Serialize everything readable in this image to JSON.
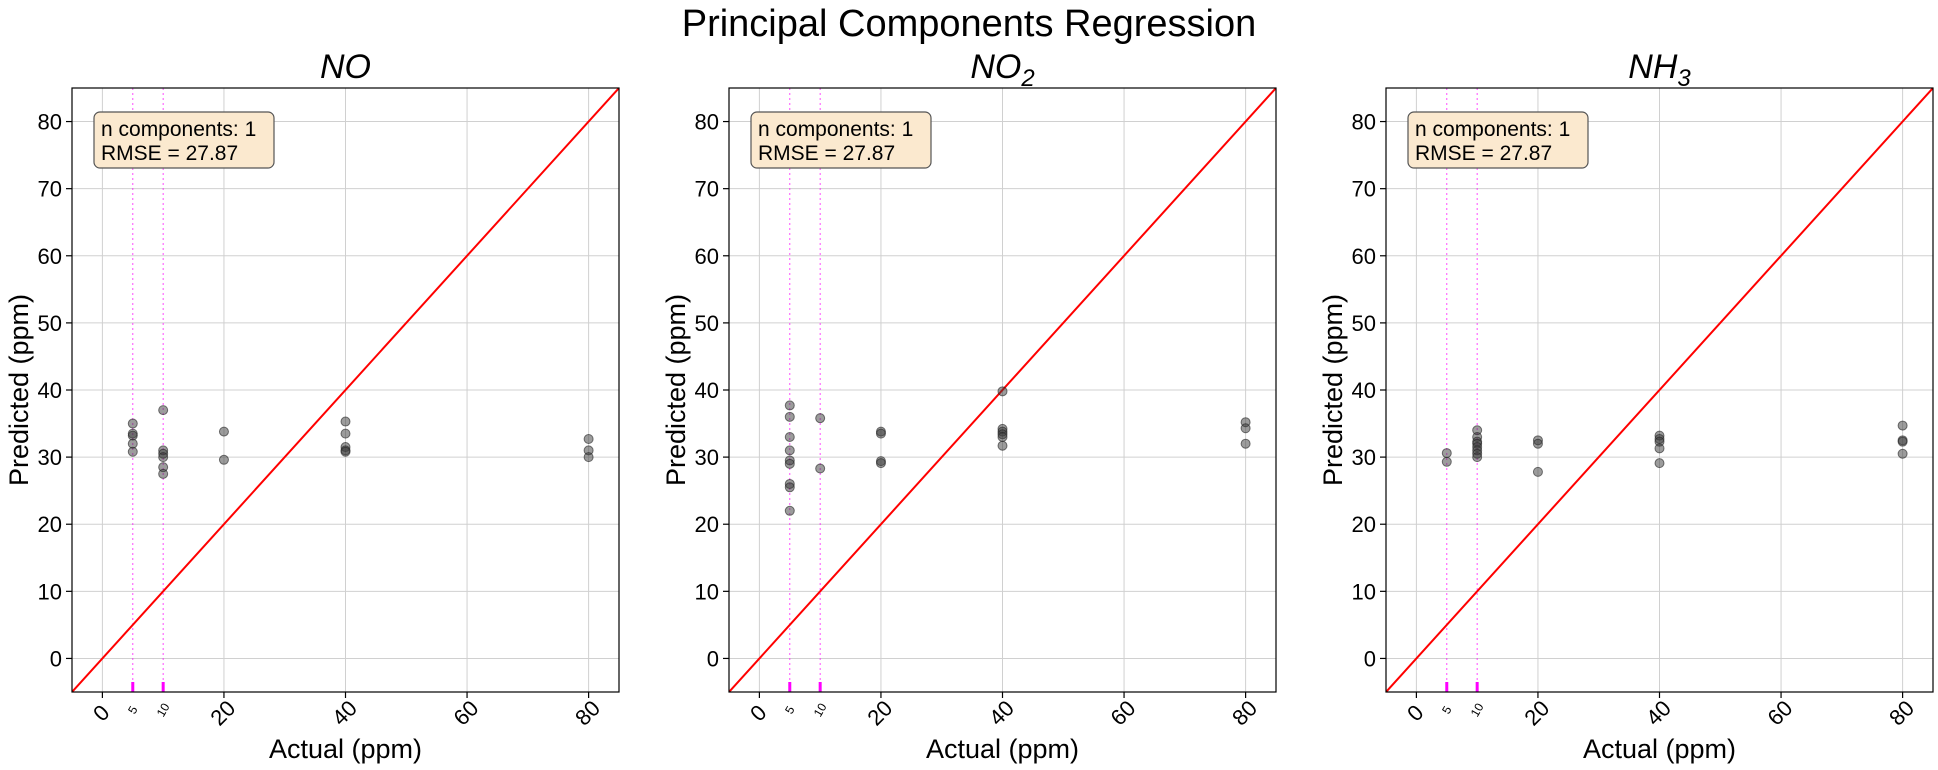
{
  "figure": {
    "title": "Principal Components Regression"
  },
  "colors": {
    "identity_line": "#ff0000",
    "points": "#3a3a3a",
    "marker_lines": "#ff00ff",
    "annotation_bg": "#fbe9cf",
    "grid": "#d0d0d0"
  },
  "chart_data": [
    {
      "type": "scatter",
      "title": "NO",
      "title_sub": "",
      "xlabel": "Actual (ppm)",
      "ylabel": "Predicted (ppm)",
      "xlim": [
        -5,
        85
      ],
      "ylim": [
        -5,
        85
      ],
      "xticks": [
        0,
        20,
        40,
        60,
        80
      ],
      "yticks": [
        0,
        10,
        20,
        30,
        40,
        50,
        60,
        70,
        80
      ],
      "minor_xticks": [
        5,
        10
      ],
      "grid": true,
      "identity_line": true,
      "annotation": {
        "line1": "n components: 1",
        "line2": "RMSE = 27.87",
        "placement": "top-left"
      },
      "points": [
        {
          "x": 5,
          "y": 35.0
        },
        {
          "x": 5,
          "y": 33.5
        },
        {
          "x": 5,
          "y": 33.2
        },
        {
          "x": 5,
          "y": 32.0
        },
        {
          "x": 5,
          "y": 30.8
        },
        {
          "x": 10,
          "y": 37.0
        },
        {
          "x": 10,
          "y": 31.0
        },
        {
          "x": 10,
          "y": 30.5
        },
        {
          "x": 10,
          "y": 30.0
        },
        {
          "x": 10,
          "y": 28.5
        },
        {
          "x": 10,
          "y": 27.5
        },
        {
          "x": 20,
          "y": 33.8
        },
        {
          "x": 20,
          "y": 29.6
        },
        {
          "x": 40,
          "y": 35.3
        },
        {
          "x": 40,
          "y": 33.5
        },
        {
          "x": 40,
          "y": 31.5
        },
        {
          "x": 40,
          "y": 31.0
        },
        {
          "x": 40,
          "y": 30.8
        },
        {
          "x": 80,
          "y": 32.7
        },
        {
          "x": 80,
          "y": 31.0
        },
        {
          "x": 80,
          "y": 30.0
        }
      ]
    },
    {
      "type": "scatter",
      "title": "NO",
      "title_sub": "2",
      "xlabel": "Actual (ppm)",
      "ylabel": "Predicted (ppm)",
      "xlim": [
        -5,
        85
      ],
      "ylim": [
        -5,
        85
      ],
      "xticks": [
        0,
        20,
        40,
        60,
        80
      ],
      "yticks": [
        0,
        10,
        20,
        30,
        40,
        50,
        60,
        70,
        80
      ],
      "minor_xticks": [
        5,
        10
      ],
      "grid": true,
      "identity_line": true,
      "annotation": {
        "line1": "n components: 1",
        "line2": "RMSE = 27.87",
        "placement": "top-left"
      },
      "points": [
        {
          "x": 5,
          "y": 37.7
        },
        {
          "x": 5,
          "y": 36.0
        },
        {
          "x": 5,
          "y": 33.0
        },
        {
          "x": 5,
          "y": 31.0
        },
        {
          "x": 5,
          "y": 29.5
        },
        {
          "x": 5,
          "y": 29.0
        },
        {
          "x": 5,
          "y": 26.0
        },
        {
          "x": 5,
          "y": 25.5
        },
        {
          "x": 5,
          "y": 22.0
        },
        {
          "x": 10,
          "y": 35.8
        },
        {
          "x": 10,
          "y": 28.3
        },
        {
          "x": 20,
          "y": 33.8
        },
        {
          "x": 20,
          "y": 33.5
        },
        {
          "x": 20,
          "y": 29.4
        },
        {
          "x": 20,
          "y": 29.1
        },
        {
          "x": 40,
          "y": 39.8
        },
        {
          "x": 40,
          "y": 34.2
        },
        {
          "x": 40,
          "y": 33.8
        },
        {
          "x": 40,
          "y": 33.4
        },
        {
          "x": 40,
          "y": 33.0
        },
        {
          "x": 40,
          "y": 31.7
        },
        {
          "x": 80,
          "y": 35.2
        },
        {
          "x": 80,
          "y": 34.3
        },
        {
          "x": 80,
          "y": 32.0
        }
      ]
    },
    {
      "type": "scatter",
      "title": "NH",
      "title_sub": "3",
      "xlabel": "Actual (ppm)",
      "ylabel": "Predicted (ppm)",
      "xlim": [
        -5,
        85
      ],
      "ylim": [
        -5,
        85
      ],
      "xticks": [
        0,
        20,
        40,
        60,
        80
      ],
      "yticks": [
        0,
        10,
        20,
        30,
        40,
        50,
        60,
        70,
        80
      ],
      "minor_xticks": [
        5,
        10
      ],
      "grid": true,
      "identity_line": true,
      "annotation": {
        "line1": "n components: 1",
        "line2": "RMSE = 27.87",
        "placement": "top-left"
      },
      "points": [
        {
          "x": 5,
          "y": 30.6
        },
        {
          "x": 5,
          "y": 29.3
        },
        {
          "x": 10,
          "y": 34.0
        },
        {
          "x": 10,
          "y": 33.0
        },
        {
          "x": 10,
          "y": 32.3
        },
        {
          "x": 10,
          "y": 32.0
        },
        {
          "x": 10,
          "y": 31.5
        },
        {
          "x": 10,
          "y": 31.0
        },
        {
          "x": 10,
          "y": 30.5
        },
        {
          "x": 10,
          "y": 30.0
        },
        {
          "x": 20,
          "y": 32.5
        },
        {
          "x": 20,
          "y": 32.0
        },
        {
          "x": 20,
          "y": 27.8
        },
        {
          "x": 40,
          "y": 33.2
        },
        {
          "x": 40,
          "y": 32.7
        },
        {
          "x": 40,
          "y": 32.3
        },
        {
          "x": 40,
          "y": 31.3
        },
        {
          "x": 40,
          "y": 29.1
        },
        {
          "x": 80,
          "y": 34.7
        },
        {
          "x": 80,
          "y": 32.5
        },
        {
          "x": 80,
          "y": 32.3
        },
        {
          "x": 80,
          "y": 30.5
        }
      ]
    }
  ]
}
